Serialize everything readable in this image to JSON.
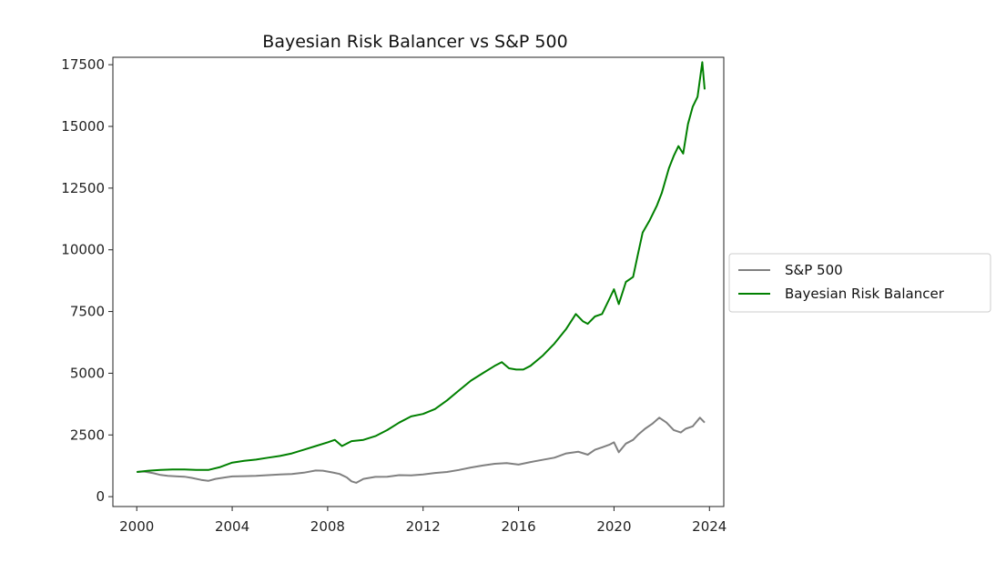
{
  "chart_data": {
    "type": "line",
    "title": "Bayesian Risk Balancer vs S&P 500",
    "xlabel": "",
    "ylabel": "",
    "xlim": [
      1999.0,
      2024.6
    ],
    "ylim": [
      -400,
      17800
    ],
    "x_ticks": [
      2000,
      2004,
      2008,
      2012,
      2016,
      2020,
      2024
    ],
    "y_ticks": [
      0,
      2500,
      5000,
      7500,
      10000,
      12500,
      15000,
      17500
    ],
    "grid": false,
    "legend_position": "outside-right",
    "series": [
      {
        "name": "S&P 500",
        "color": "#808080",
        "x": [
          2000.0,
          2000.3,
          2000.7,
          2001.0,
          2001.3,
          2001.7,
          2002.0,
          2002.3,
          2002.7,
          2003.0,
          2003.3,
          2003.7,
          2004.0,
          2004.5,
          2005.0,
          2005.5,
          2006.0,
          2006.5,
          2007.0,
          2007.5,
          2007.8,
          2008.2,
          2008.5,
          2008.8,
          2009.0,
          2009.2,
          2009.5,
          2010.0,
          2010.5,
          2011.0,
          2011.5,
          2012.0,
          2012.5,
          2013.0,
          2013.5,
          2014.0,
          2014.5,
          2015.0,
          2015.5,
          2016.0,
          2016.5,
          2017.0,
          2017.5,
          2018.0,
          2018.5,
          2018.9,
          2019.2,
          2019.5,
          2019.8,
          2020.0,
          2020.2,
          2020.5,
          2020.8,
          2021.0,
          2021.3,
          2021.6,
          2021.9,
          2022.2,
          2022.5,
          2022.8,
          2023.0,
          2023.3,
          2023.6,
          2023.8
        ],
        "y": [
          1000,
          1020,
          950,
          880,
          840,
          820,
          810,
          760,
          680,
          640,
          720,
          780,
          820,
          830,
          840,
          870,
          900,
          920,
          970,
          1060,
          1050,
          980,
          920,
          780,
          620,
          560,
          720,
          800,
          810,
          870,
          860,
          900,
          960,
          1000,
          1080,
          1180,
          1260,
          1330,
          1360,
          1300,
          1400,
          1490,
          1580,
          1750,
          1820,
          1700,
          1900,
          2000,
          2100,
          2200,
          1800,
          2150,
          2300,
          2500,
          2750,
          2950,
          3200,
          3000,
          2700,
          2600,
          2750,
          2850,
          3200,
          3000
        ]
      },
      {
        "name": "Bayesian Risk Balancer",
        "color": "#008000",
        "x": [
          2000.0,
          2000.5,
          2001.0,
          2001.5,
          2002.0,
          2002.5,
          2003.0,
          2003.5,
          2004.0,
          2004.5,
          2005.0,
          2005.5,
          2006.0,
          2006.5,
          2007.0,
          2007.5,
          2008.0,
          2008.3,
          2008.6,
          2009.0,
          2009.5,
          2010.0,
          2010.5,
          2011.0,
          2011.5,
          2012.0,
          2012.5,
          2013.0,
          2013.5,
          2014.0,
          2014.5,
          2015.0,
          2015.3,
          2015.6,
          2015.9,
          2016.2,
          2016.5,
          2017.0,
          2017.5,
          2018.0,
          2018.4,
          2018.7,
          2018.9,
          2019.2,
          2019.5,
          2019.8,
          2020.0,
          2020.2,
          2020.5,
          2020.8,
          2021.0,
          2021.2,
          2021.5,
          2021.8,
          2022.0,
          2022.3,
          2022.5,
          2022.7,
          2022.9,
          2023.1,
          2023.3,
          2023.5,
          2023.7,
          2023.8
        ],
        "y": [
          1000,
          1050,
          1080,
          1100,
          1100,
          1080,
          1080,
          1200,
          1380,
          1450,
          1500,
          1580,
          1650,
          1750,
          1900,
          2050,
          2200,
          2300,
          2050,
          2250,
          2300,
          2450,
          2700,
          3000,
          3250,
          3350,
          3550,
          3900,
          4300,
          4700,
          5000,
          5300,
          5450,
          5200,
          5150,
          5150,
          5300,
          5700,
          6200,
          6800,
          7400,
          7100,
          7000,
          7300,
          7400,
          8000,
          8400,
          7800,
          8700,
          8900,
          9800,
          10700,
          11200,
          11800,
          12300,
          13300,
          13800,
          14200,
          13900,
          15100,
          15800,
          16200,
          17600,
          16500
        ]
      }
    ]
  }
}
